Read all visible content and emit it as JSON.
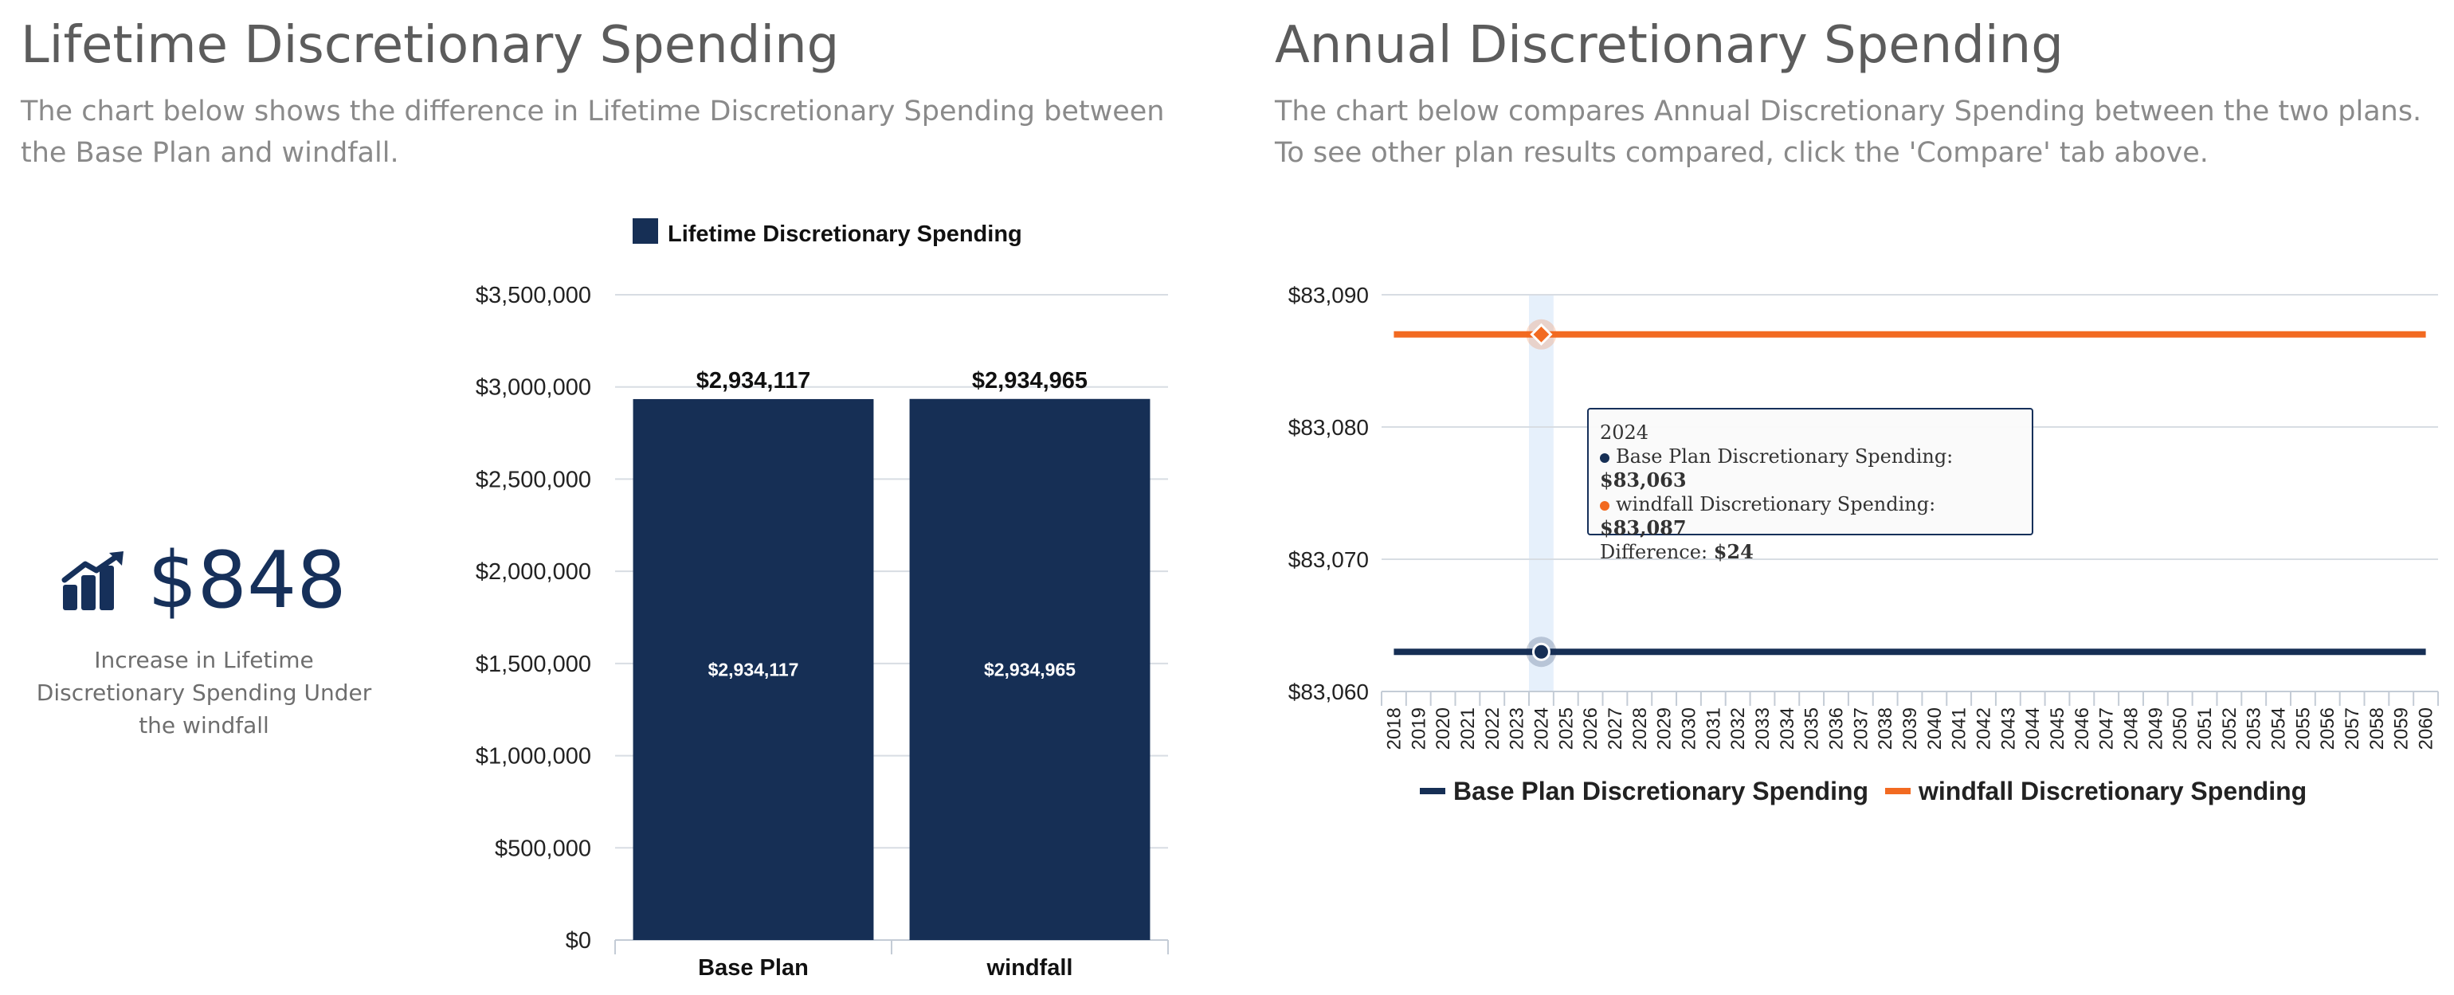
{
  "left_panel": {
    "title": "Lifetime Discretionary Spending",
    "description": "The chart below shows the difference in Lifetime Discretionary Spending between the Base Plan and windfall.",
    "kpi": {
      "icon": "chart-growth-icon",
      "value": "$848",
      "caption": "Increase in Lifetime Discretionary Spending Under the windfall"
    }
  },
  "right_panel": {
    "title": "Annual Discretionary Spending",
    "description": "The chart below compares Annual Discretionary Spending between the two plans. To see other plan results compared, click the 'Compare' tab above."
  },
  "tooltip": {
    "year": "2024",
    "base_label": "Base Plan Discretionary Spending:",
    "base_value": "$83,063",
    "windfall_label": "windfall Discretionary Spending:",
    "windfall_value": "$83,087",
    "difference_label": "Difference:",
    "difference_value": "$24"
  },
  "colors": {
    "navy": "#162f55",
    "orange": "#f26a21",
    "highlight": "#e6f0fb",
    "grid": "#d8dde3"
  },
  "chart_data": [
    {
      "type": "bar",
      "categories": [
        "Base Plan",
        "windfall"
      ],
      "series": [
        {
          "name": "Lifetime Discretionary Spending",
          "values": [
            2934117,
            2934965
          ]
        }
      ],
      "value_labels": [
        "$2,934,117",
        "$2,934,965"
      ],
      "inner_labels": [
        "$2,934,117",
        "$2,934,965"
      ],
      "y_ticks": [
        "$0",
        "$500,000",
        "$1,000,000",
        "$1,500,000",
        "$2,000,000",
        "$2,500,000",
        "$3,000,000",
        "$3,500,000"
      ],
      "ylim": [
        0,
        3500000
      ],
      "legend": "top",
      "grid": true
    },
    {
      "type": "line",
      "x": [
        "2018",
        "2019",
        "2020",
        "2021",
        "2022",
        "2023",
        "2024",
        "2025",
        "2026",
        "2027",
        "2028",
        "2029",
        "2030",
        "2031",
        "2032",
        "2033",
        "2034",
        "2035",
        "2036",
        "2037",
        "2038",
        "2039",
        "2040",
        "2041",
        "2042",
        "2043",
        "2044",
        "2045",
        "2046",
        "2047",
        "2048",
        "2049",
        "2050",
        "2051",
        "2052",
        "2053",
        "2054",
        "2055",
        "2056",
        "2057",
        "2058",
        "2059",
        "2060"
      ],
      "series": [
        {
          "name": "Base Plan Discretionary Spending",
          "values": [
            83063,
            83063,
            83063,
            83063,
            83063,
            83063,
            83063,
            83063,
            83063,
            83063,
            83063,
            83063,
            83063,
            83063,
            83063,
            83063,
            83063,
            83063,
            83063,
            83063,
            83063,
            83063,
            83063,
            83063,
            83063,
            83063,
            83063,
            83063,
            83063,
            83063,
            83063,
            83063,
            83063,
            83063,
            83063,
            83063,
            83063,
            83063,
            83063,
            83063,
            83063,
            83063,
            83063
          ]
        },
        {
          "name": "windfall Discretionary Spending",
          "values": [
            83087,
            83087,
            83087,
            83087,
            83087,
            83087,
            83087,
            83087,
            83087,
            83087,
            83087,
            83087,
            83087,
            83087,
            83087,
            83087,
            83087,
            83087,
            83087,
            83087,
            83087,
            83087,
            83087,
            83087,
            83087,
            83087,
            83087,
            83087,
            83087,
            83087,
            83087,
            83087,
            83087,
            83087,
            83087,
            83087,
            83087,
            83087,
            83087,
            83087,
            83087,
            83087,
            83087
          ]
        }
      ],
      "y_ticks": [
        "$83,060",
        "$83,070",
        "$83,080",
        "$83,090"
      ],
      "ylim": [
        83060,
        83090
      ],
      "highlighted_x": "2024",
      "legend": "bottom",
      "grid": true
    }
  ]
}
